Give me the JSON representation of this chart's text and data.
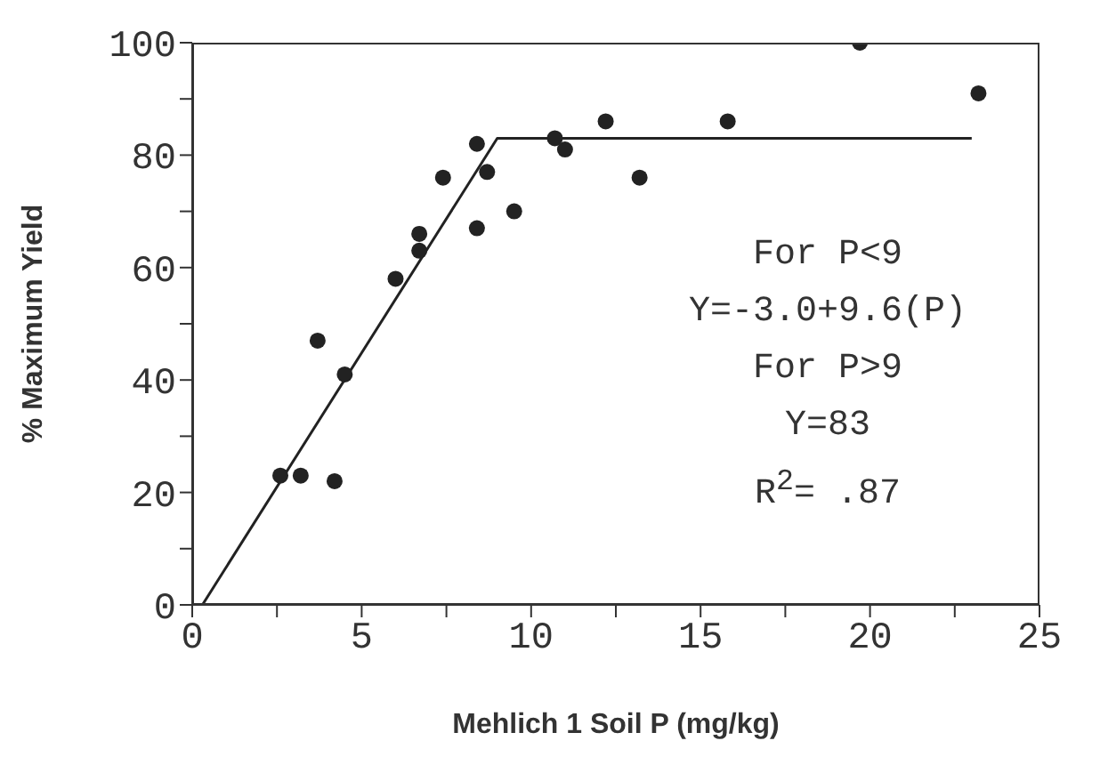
{
  "chart_data": {
    "type": "scatter",
    "xlabel": "Mehlich 1 Soil P (mg/kg)",
    "ylabel": "% Maximum Yield",
    "xlim": [
      0,
      25
    ],
    "ylim": [
      0,
      100
    ],
    "xticks": [
      0,
      {
        "value": 2.5,
        "label": null
      },
      5,
      {
        "value": 7.5,
        "label": null
      },
      10,
      {
        "value": 12.5,
        "label": null
      },
      15,
      {
        "value": 17.5,
        "label": null
      },
      20,
      {
        "value": 22.5,
        "label": null
      },
      25
    ],
    "yticks": [
      0,
      {
        "value": 10,
        "label": null
      },
      20,
      {
        "value": 30,
        "label": null
      },
      40,
      {
        "value": 50,
        "label": null
      },
      60,
      {
        "value": 70,
        "label": null
      },
      80,
      {
        "value": 90,
        "label": null
      },
      100
    ],
    "annotations": [
      "For P<9",
      "Y=-3.0+9.6(P)",
      "For P>9",
      "Y=83",
      "R$^{2}$= .87"
    ],
    "series": [
      {
        "color": "#222222",
        "marker": "circle",
        "x": [
          2.6,
          3.2,
          3.7,
          4.2,
          4.5,
          6.0,
          6.7,
          6.7,
          7.4,
          8.4,
          8.4,
          8.7,
          9.5,
          10.7,
          11.0,
          12.2,
          13.2,
          15.8,
          19.7,
          23.2
        ],
        "values": [
          23,
          23,
          47,
          22,
          41,
          58,
          63,
          66,
          76,
          82,
          67,
          77,
          70,
          83,
          81,
          86,
          76,
          86,
          100,
          91
        ]
      },
      {
        "type": "line",
        "color": "#222222",
        "marker": "none",
        "line_style": "solid",
        "x": [
          0.3,
          9,
          23
        ],
        "values": [
          0,
          83,
          83
        ]
      }
    ]
  }
}
